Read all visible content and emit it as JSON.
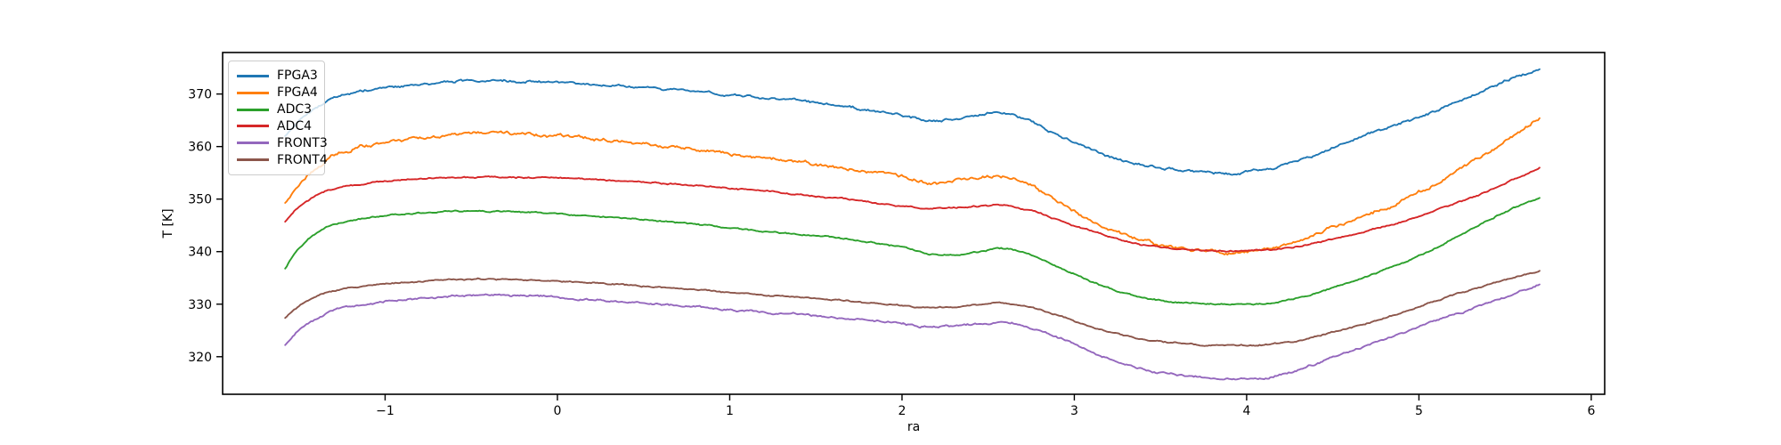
{
  "chart_data": {
    "type": "line",
    "title": "",
    "xlabel": "ra",
    "ylabel": "T [K]",
    "xlim": [
      -1.943,
      6.078
    ],
    "ylim": [
      312.85,
      377.9
    ],
    "grid": false,
    "legend_position": "upper left",
    "x_ticks": [
      -1,
      0,
      1,
      2,
      3,
      4,
      5,
      6
    ],
    "x_tick_labels": [
      "−1",
      "0",
      "1",
      "2",
      "3",
      "4",
      "5",
      "6"
    ],
    "y_ticks": [
      320,
      330,
      340,
      350,
      360,
      370
    ],
    "y_tick_labels": [
      "320",
      "330",
      "340",
      "350",
      "360",
      "370"
    ],
    "x_waypoints": [
      -1.58,
      -1.52,
      -1.45,
      -1.38,
      -1.3,
      -1.15,
      -1.0,
      -0.8,
      -0.6,
      -0.4,
      -0.2,
      0.0,
      0.3,
      0.6,
      0.9,
      1.2,
      1.5,
      1.8,
      2.0,
      2.15,
      2.3,
      2.45,
      2.6,
      2.75,
      2.9,
      3.1,
      3.3,
      3.5,
      3.7,
      3.9,
      4.1,
      4.3,
      4.5,
      4.7,
      4.9,
      5.1,
      5.3,
      5.5,
      5.7
    ],
    "series": [
      {
        "name": "FPGA3",
        "color": "#1f77b4",
        "noise": 0.28,
        "values": [
          362.0,
          364.2,
          366.3,
          367.8,
          369.2,
          370.4,
          371.0,
          371.8,
          372.3,
          372.5,
          372.4,
          372.2,
          371.7,
          371.1,
          370.2,
          369.3,
          368.4,
          367.0,
          365.9,
          364.9,
          365.3,
          366.2,
          366.3,
          364.8,
          362.3,
          359.4,
          357.2,
          356.0,
          355.4,
          355.1,
          355.6,
          357.3,
          359.9,
          362.3,
          364.5,
          366.8,
          369.6,
          372.6,
          374.8
        ]
      },
      {
        "name": "FPGA4",
        "color": "#ff7f0e",
        "noise": 0.38,
        "values": [
          349.2,
          351.8,
          354.3,
          356.2,
          358.4,
          359.9,
          360.7,
          361.6,
          362.3,
          362.5,
          362.3,
          362.0,
          361.2,
          360.3,
          359.1,
          357.8,
          356.6,
          355.2,
          354.2,
          353.1,
          353.4,
          354.2,
          354.4,
          352.6,
          349.6,
          345.9,
          343.1,
          341.3,
          340.3,
          339.9,
          340.4,
          342.0,
          344.8,
          347.0,
          349.7,
          353.0,
          356.7,
          361.0,
          365.4
        ]
      },
      {
        "name": "ADC3",
        "color": "#2ca02c",
        "noise": 0.16,
        "values": [
          336.8,
          339.8,
          342.2,
          343.8,
          345.2,
          346.2,
          346.8,
          347.3,
          347.7,
          347.7,
          347.5,
          347.2,
          346.6,
          345.8,
          344.9,
          343.9,
          343.0,
          341.9,
          340.9,
          339.6,
          339.3,
          340.0,
          340.6,
          339.4,
          337.2,
          334.3,
          332.0,
          330.7,
          330.2,
          330.0,
          330.1,
          331.2,
          333.2,
          335.3,
          337.8,
          340.7,
          344.3,
          347.6,
          350.2
        ]
      },
      {
        "name": "ADC4",
        "color": "#d62728",
        "noise": 0.16,
        "values": [
          345.7,
          347.8,
          349.7,
          351.0,
          351.9,
          352.8,
          353.4,
          353.9,
          354.1,
          354.2,
          354.1,
          354.0,
          353.6,
          353.1,
          352.4,
          351.5,
          350.6,
          349.5,
          348.7,
          348.2,
          348.4,
          348.7,
          348.8,
          347.9,
          346.1,
          343.9,
          341.9,
          340.8,
          340.3,
          340.1,
          340.3,
          341.0,
          342.4,
          343.9,
          345.7,
          347.9,
          350.2,
          353.0,
          356.0
        ]
      },
      {
        "name": "FRONT3",
        "color": "#9467bd",
        "noise": 0.22,
        "values": [
          322.3,
          324.5,
          326.2,
          327.5,
          328.8,
          329.8,
          330.5,
          331.1,
          331.5,
          331.7,
          331.6,
          331.3,
          330.7,
          330.0,
          329.3,
          328.5,
          327.8,
          326.9,
          326.3,
          325.7,
          325.9,
          326.3,
          326.5,
          325.6,
          323.7,
          321.0,
          318.5,
          316.9,
          316.2,
          315.9,
          315.9,
          317.5,
          319.8,
          322.2,
          324.4,
          327.0,
          329.0,
          331.3,
          333.7
        ]
      },
      {
        "name": "FRONT4",
        "color": "#8c564b",
        "noise": 0.16,
        "values": [
          327.5,
          329.2,
          330.6,
          331.6,
          332.5,
          333.4,
          333.9,
          334.4,
          334.7,
          334.8,
          334.7,
          334.4,
          333.9,
          333.2,
          332.5,
          331.7,
          331.1,
          330.3,
          329.8,
          329.3,
          329.5,
          329.9,
          330.1,
          329.4,
          327.9,
          325.7,
          323.9,
          322.9,
          322.4,
          322.2,
          322.3,
          323.0,
          324.7,
          326.4,
          328.4,
          330.7,
          332.7,
          334.6,
          336.3
        ]
      }
    ]
  }
}
